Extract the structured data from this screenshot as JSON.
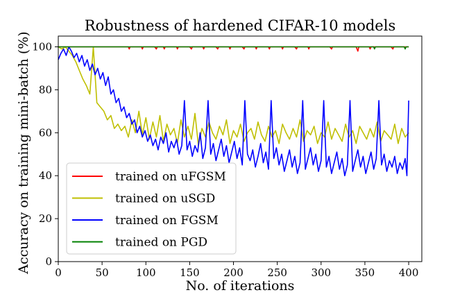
{
  "chart_data": {
    "type": "line",
    "title": "Robustness of hardened CIFAR-10 models",
    "xlabel": "No. of iterations",
    "ylabel": "Accuracy on training mini-batch (%)",
    "xlim": [
      0,
      415
    ],
    "ylim": [
      0,
      105
    ],
    "xticks": [
      0,
      50,
      100,
      150,
      200,
      250,
      300,
      350,
      400
    ],
    "yticks": [
      0,
      20,
      40,
      60,
      80,
      100
    ],
    "grid": false,
    "legend_position": "lower-left",
    "series": [
      {
        "name": "trained on uFGSM",
        "color": "#ff0000",
        "x": [
          0,
          5,
          10,
          15,
          20,
          25,
          30,
          35,
          40,
          45,
          50,
          55,
          60,
          65,
          70,
          75,
          80,
          81,
          82,
          85,
          90,
          95,
          96,
          97,
          100,
          105,
          110,
          112,
          113,
          115,
          120,
          121,
          122,
          125,
          130,
          135,
          136,
          137,
          140,
          145,
          150,
          152,
          153,
          155,
          160,
          165,
          166,
          167,
          170,
          175,
          180,
          182,
          183,
          185,
          190,
          195,
          196,
          197,
          200,
          205,
          210,
          212,
          213,
          215,
          220,
          225,
          226,
          227,
          230,
          235,
          240,
          241,
          242,
          245,
          250,
          255,
          256,
          257,
          260,
          265,
          270,
          272,
          273,
          275,
          280,
          285,
          286,
          287,
          290,
          295,
          300,
          305,
          310,
          312,
          313,
          315,
          320,
          325,
          330,
          335,
          340,
          342,
          343,
          345,
          350,
          355,
          356,
          357,
          360,
          365,
          370,
          375,
          380,
          382,
          383,
          385,
          390,
          395,
          400
        ],
        "values": [
          100,
          100,
          100,
          100,
          100,
          100,
          100,
          100,
          100,
          100,
          100,
          100,
          100,
          100,
          100,
          100,
          100,
          99,
          100,
          100,
          100,
          100,
          99,
          100,
          100,
          100,
          100,
          99,
          100,
          100,
          100,
          99,
          100,
          100,
          100,
          100,
          99,
          100,
          100,
          100,
          100,
          99,
          100,
          100,
          100,
          100,
          99,
          100,
          100,
          100,
          100,
          99,
          100,
          100,
          100,
          100,
          99,
          100,
          100,
          100,
          100,
          99,
          100,
          100,
          100,
          100,
          99,
          100,
          100,
          100,
          100,
          99,
          100,
          100,
          100,
          100,
          99,
          100,
          100,
          100,
          100,
          99,
          100,
          100,
          100,
          100,
          99,
          100,
          100,
          100,
          100,
          100,
          100,
          99,
          100,
          100,
          100,
          100,
          100,
          100,
          100,
          98,
          100,
          100,
          100,
          100,
          99,
          100,
          100,
          100,
          100,
          100,
          100,
          99,
          100,
          100,
          100,
          100,
          100
        ]
      },
      {
        "name": "trained on uSGD",
        "color": "#bfbf00",
        "x": [
          0,
          4,
          8,
          12,
          16,
          20,
          24,
          28,
          32,
          36,
          40,
          44,
          48,
          52,
          56,
          60,
          64,
          68,
          72,
          76,
          80,
          84,
          88,
          92,
          96,
          100,
          104,
          108,
          112,
          116,
          120,
          124,
          128,
          132,
          136,
          140,
          144,
          148,
          152,
          156,
          160,
          164,
          168,
          172,
          176,
          180,
          184,
          188,
          192,
          196,
          200,
          204,
          208,
          212,
          216,
          220,
          224,
          228,
          232,
          236,
          240,
          244,
          248,
          252,
          256,
          260,
          264,
          268,
          272,
          276,
          280,
          284,
          288,
          292,
          296,
          300,
          304,
          308,
          312,
          316,
          320,
          324,
          328,
          332,
          336,
          340,
          344,
          348,
          352,
          356,
          360,
          364,
          368,
          372,
          376,
          380,
          384,
          388,
          392,
          396,
          400
        ],
        "values": [
          100,
          99,
          100,
          98,
          96,
          93,
          89,
          85,
          82,
          78,
          100,
          74,
          72,
          70,
          66,
          68,
          62,
          64,
          61,
          63,
          58,
          66,
          60,
          70,
          59,
          67,
          57,
          65,
          58,
          68,
          56,
          64,
          59,
          62,
          55,
          66,
          58,
          63,
          57,
          69,
          54,
          62,
          58,
          65,
          60,
          57,
          63,
          59,
          66,
          55,
          61,
          58,
          64,
          56,
          60,
          62,
          57,
          65,
          59,
          56,
          63,
          58,
          61,
          55,
          64,
          60,
          57,
          62,
          58,
          66,
          56,
          61,
          59,
          63,
          55,
          60,
          58,
          65,
          57,
          62,
          59,
          56,
          64,
          58,
          61,
          55,
          63,
          60,
          57,
          62,
          58,
          65,
          56,
          61,
          59,
          57,
          64,
          55,
          62,
          58,
          60
        ]
      },
      {
        "name": "trained on FGSM",
        "color": "#0000ff",
        "x": [
          0,
          3,
          6,
          9,
          12,
          15,
          18,
          21,
          24,
          27,
          30,
          33,
          36,
          39,
          42,
          45,
          48,
          51,
          54,
          57,
          60,
          63,
          66,
          69,
          72,
          75,
          78,
          81,
          84,
          87,
          90,
          93,
          96,
          99,
          102,
          105,
          108,
          111,
          114,
          117,
          120,
          123,
          126,
          129,
          132,
          135,
          138,
          141,
          144,
          147,
          150,
          153,
          156,
          159,
          162,
          165,
          168,
          171,
          174,
          177,
          180,
          183,
          186,
          189,
          192,
          195,
          198,
          201,
          204,
          207,
          210,
          213,
          216,
          219,
          222,
          225,
          228,
          231,
          234,
          237,
          240,
          243,
          246,
          249,
          252,
          255,
          258,
          261,
          264,
          267,
          270,
          273,
          276,
          279,
          282,
          285,
          288,
          291,
          294,
          297,
          300,
          303,
          306,
          309,
          312,
          315,
          318,
          321,
          324,
          327,
          330,
          333,
          336,
          339,
          342,
          345,
          348,
          351,
          354,
          357,
          360,
          363,
          366,
          369,
          372,
          375,
          378,
          381,
          384,
          387,
          390,
          393,
          396,
          398,
          400
        ],
        "values": [
          94,
          97,
          99,
          96,
          100,
          98,
          95,
          97,
          93,
          96,
          91,
          94,
          89,
          92,
          87,
          90,
          85,
          88,
          82,
          86,
          78,
          80,
          74,
          76,
          70,
          72,
          67,
          69,
          64,
          66,
          60,
          63,
          58,
          61,
          56,
          59,
          54,
          57,
          52,
          58,
          55,
          60,
          51,
          56,
          53,
          57,
          50,
          54,
          75,
          52,
          56,
          49,
          54,
          51,
          60,
          48,
          53,
          75,
          50,
          55,
          47,
          52,
          57,
          49,
          54,
          46,
          51,
          56,
          48,
          53,
          45,
          75,
          50,
          47,
          52,
          44,
          49,
          55,
          46,
          51,
          43,
          75,
          48,
          53,
          45,
          50,
          42,
          47,
          52,
          44,
          49,
          41,
          46,
          75,
          43,
          48,
          53,
          45,
          50,
          42,
          47,
          75,
          44,
          49,
          41,
          46,
          51,
          43,
          48,
          40,
          45,
          75,
          42,
          47,
          52,
          44,
          49,
          41,
          46,
          51,
          43,
          48,
          75,
          45,
          50,
          42,
          47,
          44,
          49,
          41,
          46,
          43,
          48,
          40,
          75
        ]
      },
      {
        "name": "trained on PGD",
        "color": "#008000",
        "x": [
          0,
          50,
          100,
          150,
          200,
          250,
          300,
          350,
          360,
          361,
          362,
          370,
          380,
          390,
          395,
          396,
          397,
          400
        ],
        "values": [
          100,
          100,
          100,
          100,
          100,
          100,
          100,
          100,
          100,
          99,
          100,
          100,
          100,
          100,
          100,
          99,
          100,
          100
        ]
      }
    ]
  }
}
